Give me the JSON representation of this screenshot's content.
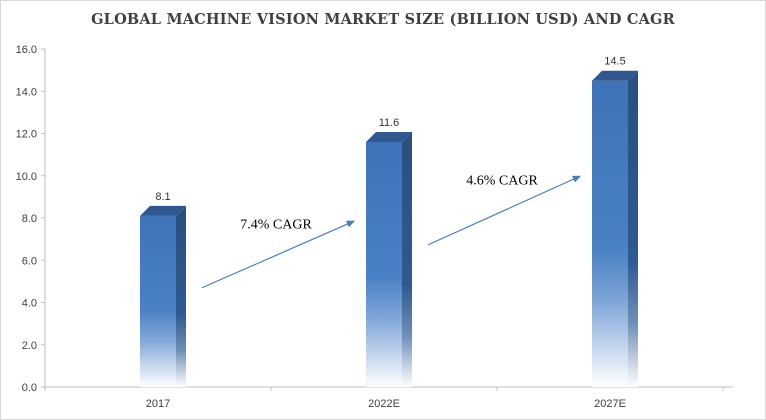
{
  "chart_data": {
    "type": "bar",
    "title": "GLOBAL MACHINE VISION MARKET SIZE (BILLION USD) AND CAGR",
    "categories": [
      "2017",
      "2022E",
      "2027E"
    ],
    "values": [
      8.1,
      11.6,
      14.5
    ],
    "data_labels": [
      "8.1",
      "11.6",
      "14.5"
    ],
    "y_ticks": [
      "0.0",
      "2.0",
      "4.0",
      "6.0",
      "8.0",
      "10.0",
      "12.0",
      "14.0",
      "16.0"
    ],
    "ylim": [
      0,
      16
    ],
    "grid": false,
    "legend": "none",
    "bar_color": "#3f73b8",
    "bar_side_color": "#2a4f80",
    "arrow_color": "#4a7ebb",
    "annotations": [
      {
        "text": "7.4% CAGR",
        "from_category": "2017",
        "to_category": "2022E"
      },
      {
        "text": "4.6% CAGR",
        "from_category": "2022E",
        "to_category": "2027E"
      }
    ]
  }
}
